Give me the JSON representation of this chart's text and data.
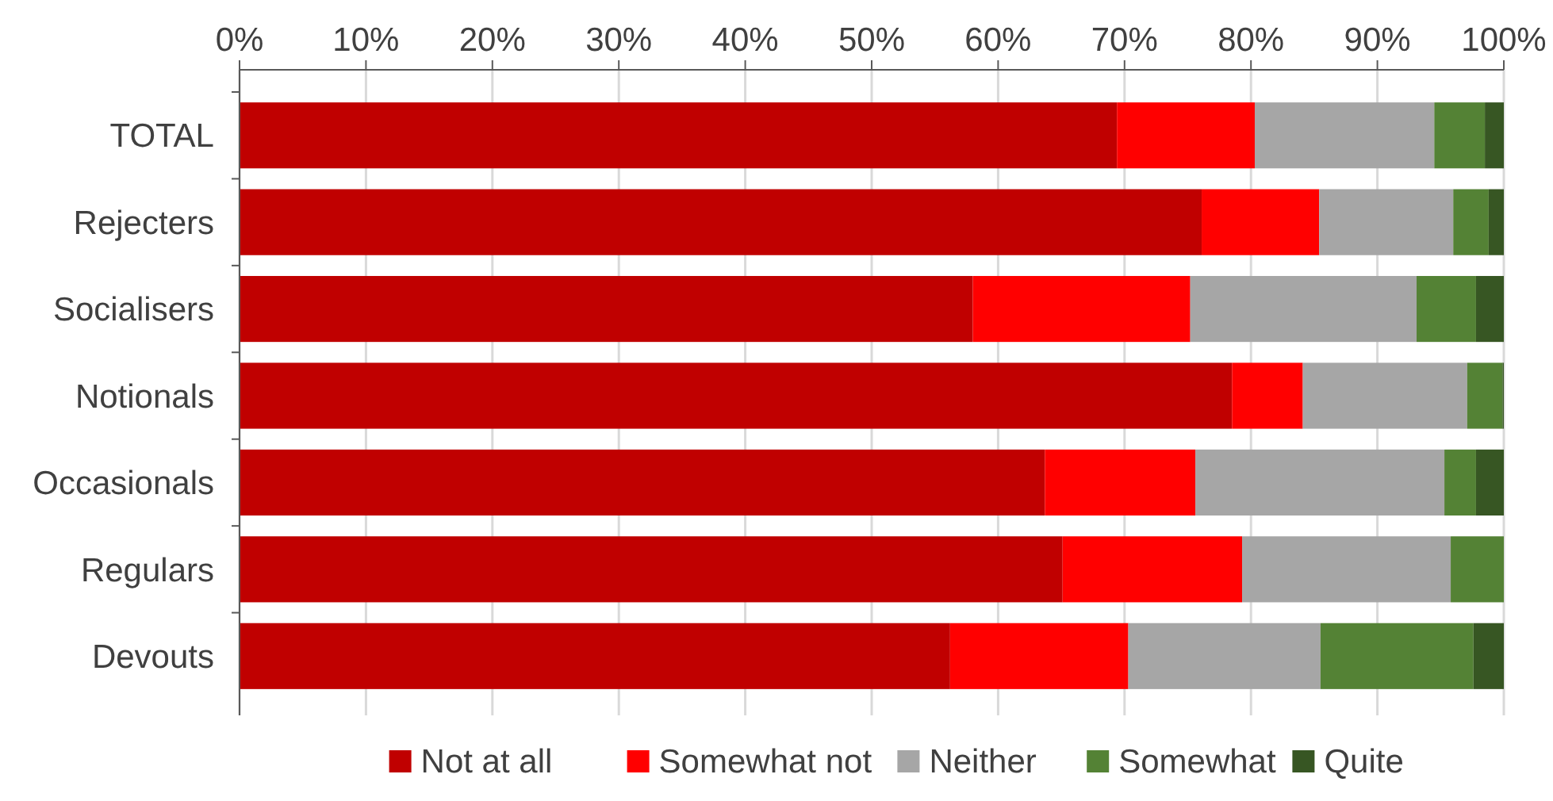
{
  "chart_data": {
    "type": "bar",
    "orientation": "horizontal",
    "stacked": true,
    "categories": [
      "TOTAL",
      "Rejecters",
      "Socialisers",
      "Notionals",
      "Occasionals",
      "Regulars",
      "Devouts"
    ],
    "series": [
      {
        "name": "Not at all",
        "color": "#c00000",
        "values": [
          69.4,
          76.1,
          58.0,
          78.5,
          63.7,
          65.1,
          56.2
        ]
      },
      {
        "name": "Somewhat not",
        "color": "#ff0000",
        "values": [
          10.9,
          9.3,
          17.2,
          5.6,
          11.9,
          14.2,
          14.1
        ]
      },
      {
        "name": "Neither",
        "color": "#a6a6a6",
        "values": [
          14.2,
          10.6,
          17.9,
          13.0,
          19.7,
          16.5,
          15.2
        ]
      },
      {
        "name": "Somewhat",
        "color": "#548235",
        "values": [
          4.0,
          2.8,
          4.7,
          2.8,
          2.5,
          4.2,
          12.1
        ]
      },
      {
        "name": "Quite",
        "color": "#375623",
        "values": [
          1.5,
          1.2,
          2.2,
          0.1,
          2.2,
          0,
          2.4
        ]
      }
    ],
    "xlim": [
      0,
      100
    ],
    "xticks": [
      {
        "value": 0,
        "label": "0%"
      },
      {
        "value": 10,
        "label": "10%"
      },
      {
        "value": 20,
        "label": "20%"
      },
      {
        "value": 30,
        "label": "30%"
      },
      {
        "value": 40,
        "label": "40%"
      },
      {
        "value": 50,
        "label": "50%"
      },
      {
        "value": 60,
        "label": "60%"
      },
      {
        "value": 70,
        "label": "70%"
      },
      {
        "value": 80,
        "label": "80%"
      },
      {
        "value": 90,
        "label": "90%"
      },
      {
        "value": 100,
        "label": "100%"
      }
    ],
    "grid": "x",
    "legend": "bottom"
  }
}
